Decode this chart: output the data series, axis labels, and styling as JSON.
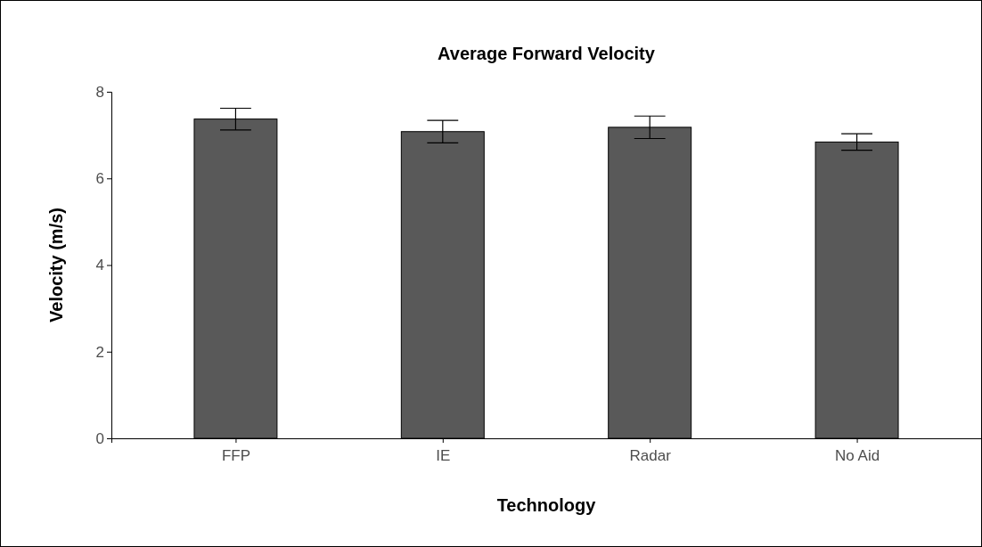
{
  "chart_data": {
    "type": "bar",
    "title": "Average Forward Velocity",
    "xlabel": "Technology",
    "ylabel": "Velocity (m/s)",
    "categories": [
      "FFP",
      "IE",
      "Radar",
      "No Aid"
    ],
    "series": [
      {
        "color": "#595959",
        "values": [
          7.37,
          7.08,
          7.18,
          6.84
        ],
        "errors": [
          0.25,
          0.26,
          0.26,
          0.19
        ]
      }
    ],
    "ylim": [
      0,
      8
    ],
    "yticks": [
      0,
      2,
      4,
      6,
      8
    ],
    "grid": false
  }
}
